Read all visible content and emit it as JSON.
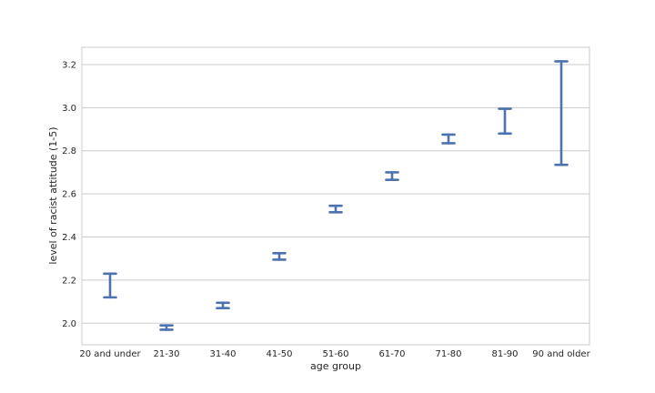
{
  "chart_data": {
    "type": "errorbar",
    "title": "",
    "xlabel": "age group",
    "ylabel": "level of racist attitude (1-5)",
    "categories": [
      "20 and under",
      "21-30",
      "31-40",
      "41-50",
      "51-60",
      "61-70",
      "71-80",
      "81-90",
      "90 and older"
    ],
    "series": [
      {
        "lower": [
          2.12,
          1.97,
          2.07,
          2.295,
          2.515,
          2.665,
          2.835,
          2.88,
          2.735
        ],
        "upper": [
          2.23,
          1.99,
          2.095,
          2.325,
          2.545,
          2.7,
          2.875,
          2.995,
          3.215
        ]
      }
    ],
    "ylim": [
      1.9,
      3.28
    ],
    "yticks": [
      2.0,
      2.2,
      2.4,
      2.6,
      2.8,
      3.0,
      3.2
    ],
    "ytick_labels": [
      "2.0",
      "2.2",
      "2.4",
      "2.6",
      "2.8",
      "3.0",
      "3.2"
    ],
    "grid": true,
    "legend": "none",
    "colors": {
      "series": "#4c72b0",
      "grid": "#cccccc",
      "frame": "#cccccc",
      "text": "#262626"
    }
  }
}
